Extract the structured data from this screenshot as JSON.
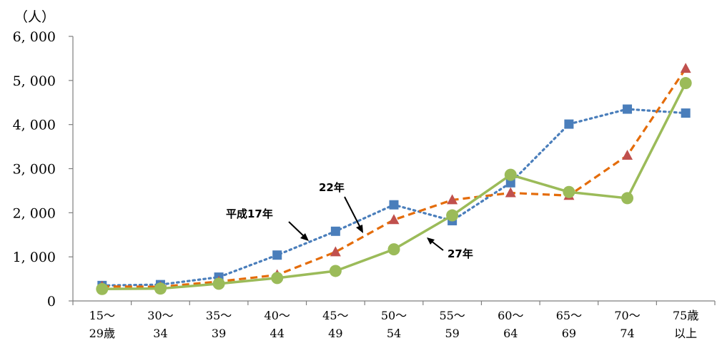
{
  "chart_data": {
    "type": "line",
    "unit_label": "（人）",
    "categories": [
      [
        "15～",
        "29歳"
      ],
      [
        "30～",
        "34"
      ],
      [
        "35～",
        "39"
      ],
      [
        "40～",
        "44"
      ],
      [
        "45～",
        "49"
      ],
      [
        "50～",
        "54"
      ],
      [
        "55～",
        "59"
      ],
      [
        "60～",
        "64"
      ],
      [
        "65～",
        "69"
      ],
      [
        "70～",
        "74"
      ],
      [
        "75歳",
        "以上"
      ]
    ],
    "ylim": [
      0,
      6000
    ],
    "yticks": [
      0,
      1000,
      2000,
      3000,
      4000,
      5000,
      6000
    ],
    "ytick_labels": [
      "0",
      "1, 000",
      "2, 000",
      "3, 000",
      "4, 000",
      "5, 000",
      "6, 000"
    ],
    "grid": false,
    "legend": "none",
    "series": [
      {
        "name": "平成17年",
        "color": "#4a7ebb",
        "line_style": "dotted",
        "marker": "square",
        "values": [
          350,
          370,
          540,
          1040,
          1580,
          2180,
          1820,
          2680,
          4010,
          4350,
          4260
        ]
      },
      {
        "name": "22年",
        "color": "#e46c0a",
        "marker_color": "#c0504d",
        "line_style": "dashed",
        "marker": "triangle",
        "values": [
          330,
          320,
          440,
          590,
          1110,
          1840,
          2290,
          2450,
          2390,
          3300,
          5270
        ]
      },
      {
        "name": "27年",
        "color": "#9bbb59",
        "line_style": "solid",
        "marker": "circle",
        "values": [
          270,
          280,
          390,
          520,
          680,
          1170,
          1940,
          2860,
          2470,
          2330,
          4940
        ]
      }
    ]
  }
}
